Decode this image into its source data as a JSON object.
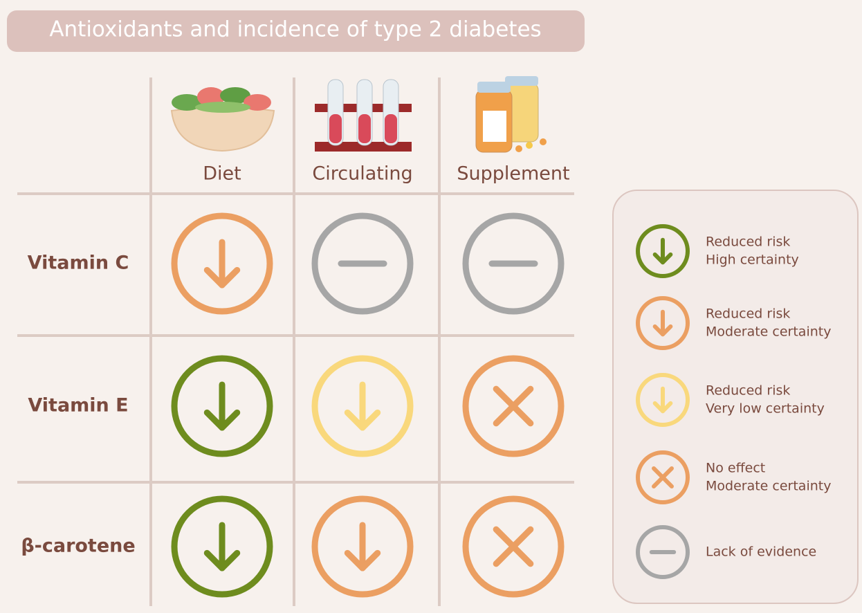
{
  "title": "Antioxidants and incidence of type 2 diabetes",
  "columns": [
    "Diet",
    "Circulating",
    "Supplement"
  ],
  "rows": [
    {
      "label": "Vitamin C",
      "cells": [
        {
          "symbol": "down",
          "color": "#eb9f62"
        },
        {
          "symbol": "minus",
          "color": "#a6a6a6"
        },
        {
          "symbol": "minus",
          "color": "#a6a6a6"
        }
      ]
    },
    {
      "label": "Vitamin E",
      "cells": [
        {
          "symbol": "down",
          "color": "#6e8c1e"
        },
        {
          "symbol": "down",
          "color": "#f9d87c"
        },
        {
          "symbol": "cross",
          "color": "#eb9f62"
        }
      ]
    },
    {
      "label": "β-carotene",
      "cells": [
        {
          "symbol": "down",
          "color": "#6e8c1e"
        },
        {
          "symbol": "down",
          "color": "#eb9f62"
        },
        {
          "symbol": "cross",
          "color": "#eb9f62"
        }
      ]
    }
  ],
  "legend": [
    {
      "lines": [
        "Reduced risk",
        "High certainty"
      ],
      "symbol": "down",
      "color": "#6e8c1e"
    },
    {
      "lines": [
        "Reduced risk",
        "Moderate certainty"
      ],
      "symbol": "down",
      "color": "#eb9f62"
    },
    {
      "lines": [
        "Reduced risk",
        "Very low certainty"
      ],
      "symbol": "down",
      "color": "#f9d87c"
    },
    {
      "lines": [
        "No effect",
        "Moderate certainty"
      ],
      "symbol": "cross",
      "color": "#eb9f62"
    },
    {
      "lines": [
        "Lack of evidence"
      ],
      "symbol": "minus",
      "color": "#a6a6a6"
    }
  ]
}
